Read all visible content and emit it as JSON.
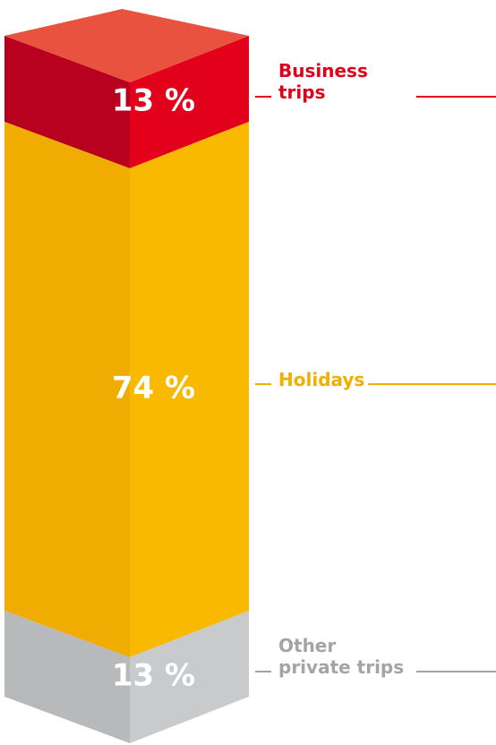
{
  "chart_data": {
    "type": "bar",
    "series": [
      {
        "name": "Business trips",
        "values": [
          13
        ],
        "value_labels": [
          "13 %"
        ],
        "color": "#e2001a",
        "side_color": "#b8001f",
        "top_color": "#e8523e",
        "text_color": "#e2001a"
      },
      {
        "name": "Holidays",
        "values": [
          74
        ],
        "value_labels": [
          "74 %"
        ],
        "color": "#f9b900",
        "side_color": "#f0ac00",
        "text_color": "#f0ae00"
      },
      {
        "name": "Other private trips",
        "values": [
          13
        ],
        "value_labels": [
          "13 %"
        ],
        "color": "#c9cacc",
        "side_color": "#b8b9bb",
        "text_color": "#a3a4a6"
      }
    ]
  }
}
